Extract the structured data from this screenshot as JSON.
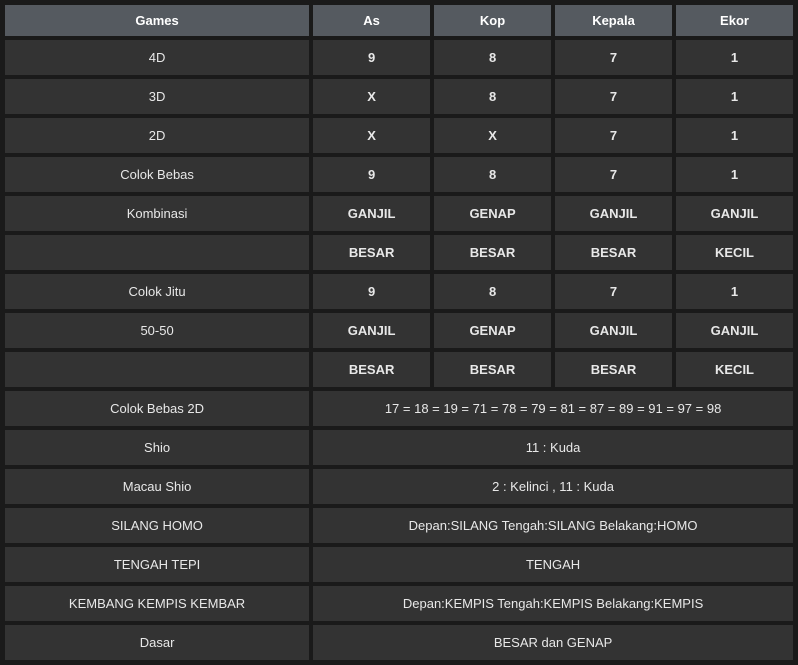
{
  "header": {
    "games": "Games",
    "as": "As",
    "kop": "Kop",
    "kepala": "Kepala",
    "ekor": "Ekor"
  },
  "rows": [
    {
      "label": "4D",
      "cells": [
        "9",
        "8",
        "7",
        "1"
      ],
      "bold": true,
      "span": false
    },
    {
      "label": "3D",
      "cells": [
        "X",
        "8",
        "7",
        "1"
      ],
      "bold": true,
      "span": false
    },
    {
      "label": "2D",
      "cells": [
        "X",
        "X",
        "7",
        "1"
      ],
      "bold": true,
      "span": false
    },
    {
      "label": "Colok Bebas",
      "cells": [
        "9",
        "8",
        "7",
        "1"
      ],
      "bold": true,
      "span": false
    },
    {
      "label": "Kombinasi",
      "cells": [
        "GANJIL",
        "GENAP",
        "GANJIL",
        "GANJIL"
      ],
      "bold": true,
      "span": false
    },
    {
      "label": "",
      "cells": [
        "BESAR",
        "BESAR",
        "BESAR",
        "KECIL"
      ],
      "bold": true,
      "span": false
    },
    {
      "label": "Colok Jitu",
      "cells": [
        "9",
        "8",
        "7",
        "1"
      ],
      "bold": true,
      "span": false
    },
    {
      "label": "50-50",
      "cells": [
        "GANJIL",
        "GENAP",
        "GANJIL",
        "GANJIL"
      ],
      "bold": true,
      "span": false
    },
    {
      "label": "",
      "cells": [
        "BESAR",
        "BESAR",
        "BESAR",
        "KECIL"
      ],
      "bold": true,
      "span": false
    },
    {
      "label": "Colok Bebas 2D",
      "full": "17 = 18 = 19 = 71 = 78 = 79 = 81 = 87 = 89 = 91 = 97 = 98",
      "span": true
    },
    {
      "label": "Shio",
      "full": "11 : Kuda",
      "span": true
    },
    {
      "label": "Macau Shio",
      "full": "2 : Kelinci , 11 : Kuda",
      "span": true
    },
    {
      "label": "SILANG HOMO",
      "full": "Depan:SILANG Tengah:SILANG Belakang:HOMO",
      "span": true
    },
    {
      "label": "TENGAH TEPI",
      "full": "TENGAH",
      "span": true
    },
    {
      "label": "KEMBANG KEMPIS KEMBAR",
      "full": "Depan:KEMPIS Tengah:KEMPIS Belakang:KEMPIS",
      "span": true
    },
    {
      "label": "Dasar",
      "full": "BESAR dan GENAP",
      "span": true
    }
  ],
  "colors": {
    "header_bg": "#555a60",
    "cell_bg": "#333333",
    "page_bg": "#1a1a1a",
    "text": "#ffffff"
  }
}
